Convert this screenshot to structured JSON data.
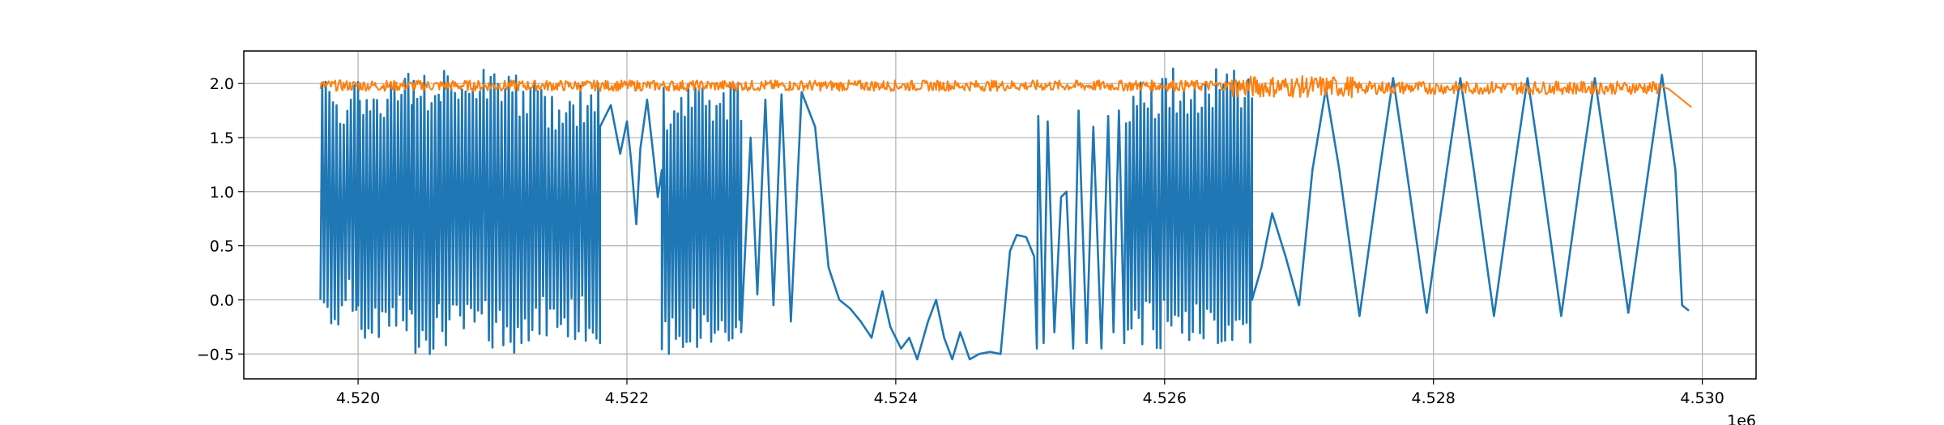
{
  "chart_data": {
    "type": "line",
    "title": "",
    "xlabel": "",
    "ylabel": "",
    "x_offset_label": "1e6",
    "xlim": [
      4.51915,
      4.5304
    ],
    "ylim": [
      -0.73,
      2.3
    ],
    "x_ticks": [
      4.52,
      4.522,
      4.524,
      4.526,
      4.528,
      4.53
    ],
    "x_tick_labels": [
      "4.520",
      "4.522",
      "4.524",
      "4.526",
      "4.528",
      "4.530"
    ],
    "y_ticks": [
      -0.5,
      0.0,
      0.5,
      1.0,
      1.5,
      2.0
    ],
    "y_tick_labels": [
      "−0.5",
      "0.0",
      "0.5",
      "1.0",
      "1.5",
      "2.0"
    ],
    "grid": true,
    "legend": "none",
    "x_range": [
      4.51972,
      4.52992
    ],
    "series": [
      {
        "color": "#1f77b4",
        "segments": [
          {
            "x": [
              4.51972,
              4.52
            ],
            "kind": "dense",
            "low": -0.25,
            "high": 2.05
          },
          {
            "x": [
              4.52,
              4.52018
            ],
            "kind": "dense",
            "low": -0.45,
            "high": 2.05
          },
          {
            "x": [
              4.52018,
              4.5204
            ],
            "kind": "dense",
            "low": -0.4,
            "high": 2.1
          },
          {
            "x": [
              4.5204,
              4.5206
            ],
            "kind": "dense",
            "low": -0.5,
            "high": 2.1
          },
          {
            "x": [
              4.5206,
              4.521
            ],
            "kind": "dense",
            "low": -0.45,
            "high": 2.15
          },
          {
            "x": [
              4.521,
              4.52135
            ],
            "kind": "dense",
            "low": -0.5,
            "high": 2.1
          },
          {
            "x": [
              4.52135,
              4.5218
            ],
            "kind": "dense",
            "low": -0.4,
            "high": 2.0
          },
          {
            "x": [
              4.5218,
              4.522
            ],
            "kind": "wave",
            "points": [
              [
                4.5218,
                1.6
              ],
              [
                4.52188,
                1.8
              ],
              [
                4.52195,
                1.35
              ],
              [
                4.522,
                1.65
              ],
              [
                4.52203,
                1.3
              ],
              [
                4.52207,
                0.7
              ]
            ]
          },
          {
            "x": [
              4.52207,
              4.52225
            ],
            "kind": "wave",
            "points": [
              [
                4.52207,
                0.7
              ],
              [
                4.5221,
                1.4
              ],
              [
                4.52215,
                1.85
              ],
              [
                4.5222,
                1.3
              ],
              [
                4.52223,
                0.95
              ],
              [
                4.52226,
                1.2
              ]
            ]
          },
          {
            "x": [
              4.52226,
              4.52285
            ],
            "kind": "dense",
            "low": -0.5,
            "high": 2.0
          },
          {
            "x": [
              4.52285,
              4.5235
            ],
            "kind": "wave",
            "points": [
              [
                4.52285,
                -0.3
              ],
              [
                4.52292,
                1.5
              ],
              [
                4.52297,
                0.05
              ],
              [
                4.52303,
                1.85
              ],
              [
                4.52309,
                -0.05
              ],
              [
                4.52315,
                1.9
              ],
              [
                4.52322,
                -0.2
              ],
              [
                4.5233,
                1.92
              ],
              [
                4.5234,
                1.6
              ],
              [
                4.5235,
                0.3
              ]
            ]
          },
          {
            "x": [
              4.5235,
              4.5244
            ],
            "kind": "wave",
            "points": [
              [
                4.5235,
                0.3
              ],
              [
                4.52358,
                0.0
              ],
              [
                4.52366,
                -0.08
              ],
              [
                4.52374,
                -0.2
              ],
              [
                4.52382,
                -0.35
              ],
              [
                4.5239,
                0.08
              ],
              [
                4.52396,
                -0.25
              ],
              [
                4.52404,
                -0.45
              ],
              [
                4.5241,
                -0.35
              ],
              [
                4.52416,
                -0.55
              ],
              [
                4.52424,
                -0.2
              ],
              [
                4.5243,
                0.0
              ],
              [
                4.52436,
                -0.35
              ],
              [
                4.52442,
                -0.55
              ]
            ]
          },
          {
            "x": [
              4.52442,
              4.525
            ],
            "kind": "wave",
            "points": [
              [
                4.52442,
                -0.55
              ],
              [
                4.52448,
                -0.3
              ],
              [
                4.52455,
                -0.55
              ],
              [
                4.52462,
                -0.5
              ],
              [
                4.5247,
                -0.48
              ],
              [
                4.52478,
                -0.5
              ],
              [
                4.52485,
                0.45
              ],
              [
                4.5249,
                0.6
              ],
              [
                4.52497,
                0.58
              ],
              [
                4.52503,
                0.4
              ]
            ]
          },
          {
            "x": [
              4.52503,
              4.5257
            ],
            "kind": "wave",
            "points": [
              [
                4.52503,
                0.4
              ],
              [
                4.52505,
                -0.45
              ],
              [
                4.52506,
                1.7
              ],
              [
                4.5251,
                -0.4
              ],
              [
                4.52513,
                1.65
              ],
              [
                4.52518,
                -0.3
              ],
              [
                4.52523,
                0.95
              ],
              [
                4.52527,
                1.0
              ],
              [
                4.52532,
                -0.45
              ],
              [
                4.52536,
                1.75
              ],
              [
                4.52542,
                -0.4
              ],
              [
                4.52547,
                1.6
              ],
              [
                4.52553,
                -0.45
              ],
              [
                4.52558,
                1.7
              ],
              [
                4.52562,
                -0.3
              ],
              [
                4.52566,
                1.75
              ],
              [
                4.5257,
                -0.4
              ]
            ]
          },
          {
            "x": [
              4.5257,
              4.52605
            ],
            "kind": "dense",
            "low": -0.45,
            "high": 2.05
          },
          {
            "x": [
              4.52605,
              4.52665
            ],
            "kind": "dense",
            "low": -0.45,
            "high": 2.15
          },
          {
            "x": [
              4.52665,
              4.5299
            ],
            "kind": "wave",
            "points": [
              [
                4.52665,
                0.0
              ],
              [
                4.52672,
                0.3
              ],
              [
                4.5268,
                0.8
              ],
              [
                4.5269,
                0.4
              ],
              [
                4.527,
                -0.05
              ],
              [
                4.5271,
                1.2
              ],
              [
                4.5272,
                1.95
              ],
              [
                4.5273,
                1.2
              ],
              [
                4.52745,
                -0.15
              ],
              [
                4.5276,
                1.2
              ],
              [
                4.5277,
                2.05
              ],
              [
                4.5278,
                1.2
              ],
              [
                4.52795,
                -0.12
              ],
              [
                4.5281,
                1.2
              ],
              [
                4.5282,
                2.05
              ],
              [
                4.5283,
                1.2
              ],
              [
                4.52845,
                -0.15
              ],
              [
                4.5286,
                1.2
              ],
              [
                4.5287,
                2.05
              ],
              [
                4.5288,
                1.2
              ],
              [
                4.52895,
                -0.15
              ],
              [
                4.5291,
                1.2
              ],
              [
                4.5292,
                2.05
              ],
              [
                4.5293,
                1.2
              ],
              [
                4.52945,
                -0.12
              ],
              [
                4.5296,
                1.2
              ],
              [
                4.5297,
                2.08
              ],
              [
                4.5298,
                1.2
              ],
              [
                4.52985,
                -0.05
              ],
              [
                4.5299,
                -0.1
              ]
            ]
          }
        ]
      },
      {
        "color": "#ff7f0e",
        "segments": [
          {
            "x": [
              4.51972,
              4.5265
            ],
            "kind": "noise",
            "level": 1.98,
            "amplitude": 0.05
          },
          {
            "x": [
              4.5265,
              4.5274
            ],
            "kind": "noise",
            "level": 1.97,
            "amplitude": 0.1
          },
          {
            "x": [
              4.5274,
              4.52968
            ],
            "kind": "noise",
            "level": 1.96,
            "amplitude": 0.06
          },
          {
            "x": [
              4.52968,
              4.52992
            ],
            "kind": "wave",
            "points": [
              [
                4.52968,
                1.98
              ],
              [
                4.52975,
                1.95
              ],
              [
                4.52982,
                1.88
              ],
              [
                4.52988,
                1.82
              ],
              [
                4.52992,
                1.78
              ]
            ]
          }
        ]
      }
    ]
  }
}
